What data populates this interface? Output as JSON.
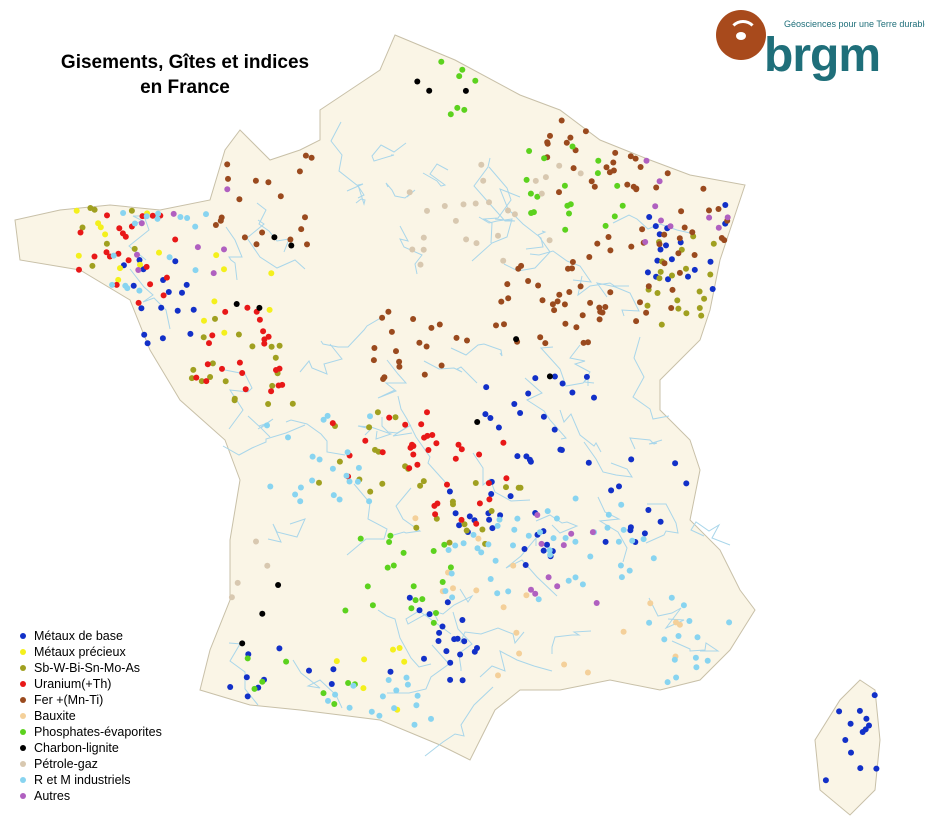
{
  "title": {
    "line1": "Gisements, Gîtes et indices",
    "line2": "en France"
  },
  "logo": {
    "brand": "brgm",
    "tagline": "Géosciences pour une Terre durable"
  },
  "colors": {
    "land": "#faf5e6",
    "rivers": "#a9d6ea",
    "logo": "#1f6f7a",
    "logo_circle": "#a84a1c"
  },
  "legend": [
    {
      "label": "Métaux de base",
      "color": "#1230c8"
    },
    {
      "label": "Métaux précieux",
      "color": "#f4f01c"
    },
    {
      "label": "Sb-W-Bi-Sn-Mo-As",
      "color": "#a0a020"
    },
    {
      "label": "Uranium(+Th)",
      "color": "#e81818"
    },
    {
      "label": "Fer +(Mn-Ti)",
      "color": "#9a4a1e"
    },
    {
      "label": "Bauxite",
      "color": "#f4d09a"
    },
    {
      "label": "Phosphates-évaporites",
      "color": "#5cd21e"
    },
    {
      "label": "Charbon-lignite",
      "color": "#000000"
    },
    {
      "label": "Pétrole-gaz",
      "color": "#d8c8b0"
    },
    {
      "label": "R et M industriels",
      "color": "#88d4f0"
    },
    {
      "label": "Autres",
      "color": "#b060c0"
    }
  ]
}
